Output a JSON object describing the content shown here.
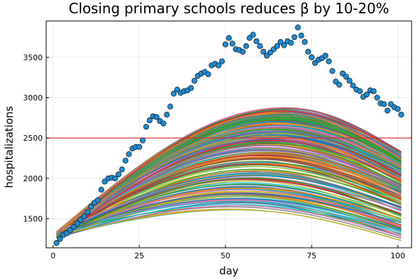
{
  "chart_data": {
    "type": "line",
    "title": "Closing primary schools reduces β by 10-20%",
    "xlabel": "day",
    "ylabel": "hospitalizations",
    "xlim": [
      -2,
      104
    ],
    "ylim": [
      1140,
      3950
    ],
    "xticks": [
      0,
      25,
      50,
      75,
      100
    ],
    "yticks": [
      1500,
      2000,
      2500,
      3000,
      3500
    ],
    "grid": true,
    "legend": "none",
    "threshold": {
      "y": 2500,
      "color": "#d62728"
    },
    "observed": {
      "color": "#1f8ad0",
      "x": [
        1,
        2,
        3,
        4,
        5,
        6,
        7,
        8,
        9,
        10,
        11,
        12,
        13,
        14,
        15,
        16,
        17,
        18,
        19,
        20,
        21,
        22,
        23,
        24,
        25,
        26,
        27,
        28,
        29,
        30,
        31,
        32,
        33,
        34,
        35,
        36,
        37,
        38,
        39,
        40,
        41,
        42,
        43,
        44,
        45,
        46,
        47,
        48,
        49,
        50,
        51,
        52,
        53,
        54,
        55,
        56,
        57,
        58,
        59,
        60,
        61,
        62,
        63,
        64,
        65,
        66,
        67,
        68,
        69,
        70,
        71,
        72,
        73,
        74,
        75,
        76,
        77,
        78,
        79,
        80,
        81,
        82,
        83,
        84,
        85,
        86,
        87,
        88,
        89,
        90,
        91,
        92,
        93,
        94,
        95,
        96,
        97,
        98,
        99,
        100,
        101
      ],
      "y": [
        1200,
        1250,
        1300,
        1320,
        1360,
        1400,
        1440,
        1490,
        1530,
        1580,
        1650,
        1700,
        1730,
        1860,
        1960,
        2000,
        2010,
        2000,
        2050,
        2110,
        2220,
        2300,
        2370,
        2390,
        2390,
        2470,
        2640,
        2720,
        2770,
        2760,
        2710,
        2680,
        2790,
        2890,
        3050,
        3100,
        3060,
        3080,
        3090,
        3120,
        3210,
        3270,
        3300,
        3320,
        3290,
        3400,
        3420,
        3400,
        3450,
        3660,
        3740,
        3670,
        3600,
        3590,
        3570,
        3640,
        3740,
        3780,
        3700,
        3640,
        3570,
        3520,
        3560,
        3600,
        3640,
        3690,
        3650,
        3700,
        3680,
        3750,
        3870,
        3770,
        3690,
        3570,
        3500,
        3430,
        3470,
        3490,
        3520,
        3450,
        3330,
        3200,
        3160,
        3300,
        3260,
        3210,
        3150,
        3100,
        3080,
        3010,
        3040,
        3090,
        3080,
        3000,
        2930,
        2920,
        2840,
        2920,
        2880,
        2860,
        2790
      ]
    },
    "simulations": {
      "x_start": 1,
      "x_end": 101,
      "y_start_range": [
        1260,
        1340
      ],
      "y_end_range": [
        1230,
        2330
      ],
      "peak_day_range": [
        52,
        68
      ],
      "peak_range": [
        1610,
        2880
      ],
      "palette": [
        "#1f8ad0",
        "#e28b1c",
        "#3aa23a",
        "#9467bd",
        "#8c564b",
        "#e377c2",
        "#7f7f7f",
        "#bcbd22",
        "#17becf",
        "#d62728",
        "#2ca02c",
        "#ff7f0e",
        "#1f77b4"
      ]
    }
  }
}
